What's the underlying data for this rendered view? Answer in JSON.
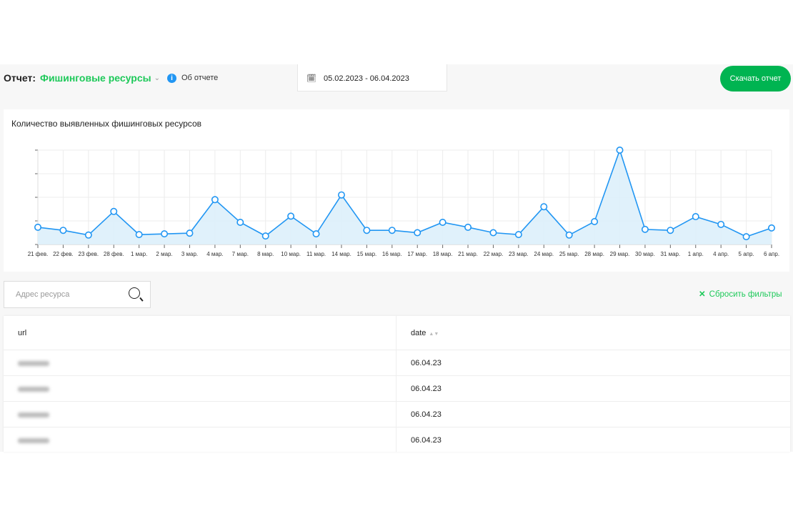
{
  "header": {
    "report_label": "Отчет:",
    "report_value": "Фишинговые ресурсы",
    "about": "Об отчете",
    "date_range": "05.02.2023 - 06.04.2023",
    "download": "Скачать отчет"
  },
  "colors": {
    "accent": "#1ec95a",
    "button": "#00b451",
    "series": "#2196f3",
    "fill": "#ddeffb",
    "info": "#2196f3"
  },
  "chart_data": {
    "type": "area",
    "title": "Количество выявленных фишинговых ресурсов",
    "categories": [
      "21 фев.",
      "22 фев.",
      "23 фев.",
      "28 фев.",
      "1 мар.",
      "2 мар.",
      "3 мар.",
      "4 мар.",
      "7 мар.",
      "8 мар.",
      "10 мар.",
      "11 мар.",
      "14 мар.",
      "15 мар.",
      "16 мар.",
      "17 мар.",
      "18 мар.",
      "21 мар.",
      "22 мар.",
      "23 мар.",
      "24 мар.",
      "25 мар.",
      "28 мар.",
      "29 мар.",
      "30 мар.",
      "31 мар.",
      "1 апр.",
      "4 апр.",
      "5 апр.",
      "6 апр."
    ],
    "values": [
      0.73,
      0.6,
      0.4,
      1.4,
      0.42,
      0.45,
      0.48,
      1.9,
      0.94,
      0.36,
      1.2,
      0.45,
      2.1,
      0.6,
      0.6,
      0.5,
      0.94,
      0.73,
      0.5,
      0.42,
      1.6,
      0.4,
      0.97,
      4,
      0.64,
      0.6,
      1.18,
      0.85,
      0.33,
      0.7
    ],
    "ylim": [
      0,
      4
    ],
    "grid": true,
    "legend": "none"
  },
  "filters": {
    "search_placeholder": "Адрес ресурса",
    "reset": "Сбросить фильтры"
  },
  "table": {
    "columns": [
      "url",
      "date"
    ],
    "rows": [
      {
        "date": "06.04.23"
      },
      {
        "date": "06.04.23"
      },
      {
        "date": "06.04.23"
      },
      {
        "date": "06.04.23"
      }
    ]
  }
}
